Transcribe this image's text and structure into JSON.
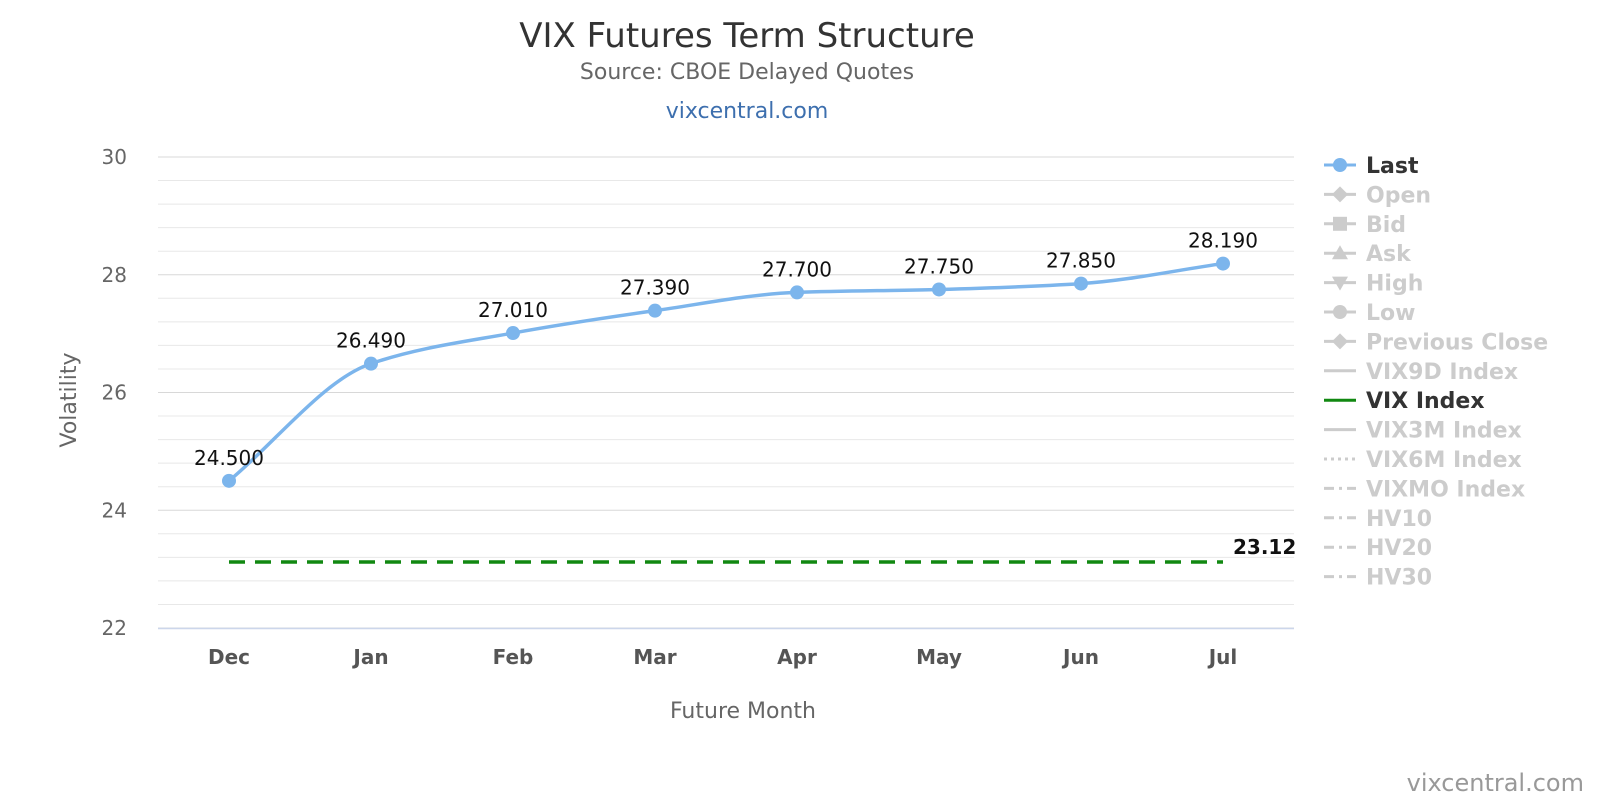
{
  "chart_data": {
    "type": "line",
    "title": "VIX Futures Term Structure",
    "subtitle": "Source: CBOE Delayed Quotes",
    "link": "vixcentral.com",
    "xlabel": "Future Month",
    "ylabel": "Volatility",
    "ylim": [
      22,
      30
    ],
    "yticks": [
      "22",
      "24",
      "26",
      "28",
      "30"
    ],
    "categories": [
      "Dec",
      "Jan",
      "Feb",
      "Mar",
      "Apr",
      "May",
      "Jun",
      "Jul"
    ],
    "grid": true,
    "legend_position": "right",
    "series": [
      {
        "name": "Last",
        "values": [
          24.5,
          26.49,
          27.01,
          27.39,
          27.7,
          27.75,
          27.85,
          28.19
        ],
        "labels": [
          "24.500",
          "26.490",
          "27.010",
          "27.390",
          "27.700",
          "27.750",
          "27.850",
          "28.190"
        ],
        "color": "#7cb5ec"
      },
      {
        "name": "VIX Index",
        "value": 23.12,
        "label": "23.12",
        "color": "#118811",
        "style": "dashed"
      }
    ],
    "legend": [
      {
        "name": "Last",
        "symbol": "circle",
        "active": true,
        "color": "#7cb5ec"
      },
      {
        "name": "Open",
        "symbol": "diamond",
        "active": false
      },
      {
        "name": "Bid",
        "symbol": "square",
        "active": false
      },
      {
        "name": "Ask",
        "symbol": "triangle",
        "active": false
      },
      {
        "name": "High",
        "symbol": "triangle-down",
        "active": false
      },
      {
        "name": "Low",
        "symbol": "circle",
        "active": false
      },
      {
        "name": "Previous Close",
        "symbol": "diamond",
        "active": false
      },
      {
        "name": "VIX9D Index",
        "symbol": "line",
        "active": false
      },
      {
        "name": "VIX Index",
        "symbol": "line",
        "active": true,
        "color": "#118811"
      },
      {
        "name": "VIX3M Index",
        "symbol": "line",
        "active": false
      },
      {
        "name": "VIX6M Index",
        "symbol": "dotted",
        "active": false
      },
      {
        "name": "VIXMO Index",
        "symbol": "dashdot",
        "active": false
      },
      {
        "name": "HV10",
        "symbol": "dashdot",
        "active": false
      },
      {
        "name": "HV20",
        "symbol": "dashdot",
        "active": false
      },
      {
        "name": "HV30",
        "symbol": "dashdot",
        "active": false
      }
    ],
    "credits": "vixcentral.com"
  }
}
